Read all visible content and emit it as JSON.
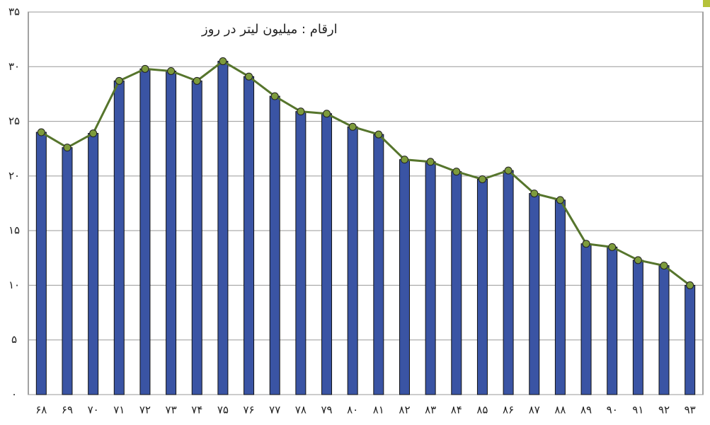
{
  "chart_data": {
    "type": "bar",
    "annotation": "ارقام : میلیون لیتر در روز",
    "categories": [
      "۶۸",
      "۶۹",
      "۷۰",
      "۷۱",
      "۷۲",
      "۷۳",
      "۷۴",
      "۷۵",
      "۷۶",
      "۷۷",
      "۷۸",
      "۷۹",
      "۸۰",
      "۸۱",
      "۸۲",
      "۸۳",
      "۸۴",
      "۸۵",
      "۸۶",
      "۸۷",
      "۸۸",
      "۸۹",
      "۹۰",
      "۹۱",
      "۹۲",
      "۹۳"
    ],
    "values": [
      24.0,
      22.6,
      23.9,
      28.7,
      29.8,
      29.6,
      28.7,
      30.5,
      29.1,
      27.3,
      25.9,
      25.7,
      24.5,
      23.8,
      21.5,
      21.3,
      20.4,
      19.7,
      20.5,
      18.4,
      17.8,
      13.8,
      13.5,
      12.3,
      11.8,
      10.0
    ],
    "color": "#3a54a4",
    "line_color": "#56752c",
    "marker_color": "#7d9b3c",
    "ylim": [
      0,
      35
    ],
    "yticks": [
      {
        "value": 0,
        "label": "۰"
      },
      {
        "value": 5,
        "label": "۵"
      },
      {
        "value": 10,
        "label": "۱۰"
      },
      {
        "value": 15,
        "label": "۱۵"
      },
      {
        "value": 20,
        "label": "۲۰"
      },
      {
        "value": 25,
        "label": "۲۵"
      },
      {
        "value": 30,
        "label": "۳۰"
      },
      {
        "value": 35,
        "label": "۳۵"
      }
    ],
    "grid": true
  }
}
